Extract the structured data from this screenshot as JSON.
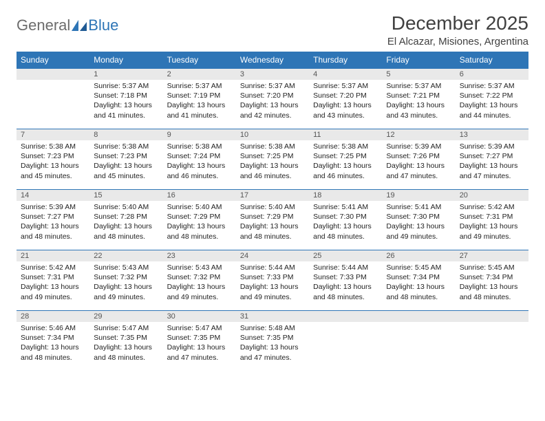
{
  "logo": {
    "text1": "General",
    "text2": "Blue"
  },
  "title": "December 2025",
  "location": "El Alcazar, Misiones, Argentina",
  "colors": {
    "header_bg": "#2e75b6",
    "header_fg": "#ffffff",
    "daynum_bg": "#e9e9e9",
    "row_divider": "#2e75b6",
    "text": "#333333"
  },
  "weekdays": [
    "Sunday",
    "Monday",
    "Tuesday",
    "Wednesday",
    "Thursday",
    "Friday",
    "Saturday"
  ],
  "start_offset": 1,
  "days": [
    {
      "n": 1,
      "sunrise": "5:37 AM",
      "sunset": "7:18 PM",
      "daylight": "13 hours and 41 minutes."
    },
    {
      "n": 2,
      "sunrise": "5:37 AM",
      "sunset": "7:19 PM",
      "daylight": "13 hours and 41 minutes."
    },
    {
      "n": 3,
      "sunrise": "5:37 AM",
      "sunset": "7:20 PM",
      "daylight": "13 hours and 42 minutes."
    },
    {
      "n": 4,
      "sunrise": "5:37 AM",
      "sunset": "7:20 PM",
      "daylight": "13 hours and 43 minutes."
    },
    {
      "n": 5,
      "sunrise": "5:37 AM",
      "sunset": "7:21 PM",
      "daylight": "13 hours and 43 minutes."
    },
    {
      "n": 6,
      "sunrise": "5:37 AM",
      "sunset": "7:22 PM",
      "daylight": "13 hours and 44 minutes."
    },
    {
      "n": 7,
      "sunrise": "5:38 AM",
      "sunset": "7:23 PM",
      "daylight": "13 hours and 45 minutes."
    },
    {
      "n": 8,
      "sunrise": "5:38 AM",
      "sunset": "7:23 PM",
      "daylight": "13 hours and 45 minutes."
    },
    {
      "n": 9,
      "sunrise": "5:38 AM",
      "sunset": "7:24 PM",
      "daylight": "13 hours and 46 minutes."
    },
    {
      "n": 10,
      "sunrise": "5:38 AM",
      "sunset": "7:25 PM",
      "daylight": "13 hours and 46 minutes."
    },
    {
      "n": 11,
      "sunrise": "5:38 AM",
      "sunset": "7:25 PM",
      "daylight": "13 hours and 46 minutes."
    },
    {
      "n": 12,
      "sunrise": "5:39 AM",
      "sunset": "7:26 PM",
      "daylight": "13 hours and 47 minutes."
    },
    {
      "n": 13,
      "sunrise": "5:39 AM",
      "sunset": "7:27 PM",
      "daylight": "13 hours and 47 minutes."
    },
    {
      "n": 14,
      "sunrise": "5:39 AM",
      "sunset": "7:27 PM",
      "daylight": "13 hours and 48 minutes."
    },
    {
      "n": 15,
      "sunrise": "5:40 AM",
      "sunset": "7:28 PM",
      "daylight": "13 hours and 48 minutes."
    },
    {
      "n": 16,
      "sunrise": "5:40 AM",
      "sunset": "7:29 PM",
      "daylight": "13 hours and 48 minutes."
    },
    {
      "n": 17,
      "sunrise": "5:40 AM",
      "sunset": "7:29 PM",
      "daylight": "13 hours and 48 minutes."
    },
    {
      "n": 18,
      "sunrise": "5:41 AM",
      "sunset": "7:30 PM",
      "daylight": "13 hours and 48 minutes."
    },
    {
      "n": 19,
      "sunrise": "5:41 AM",
      "sunset": "7:30 PM",
      "daylight": "13 hours and 49 minutes."
    },
    {
      "n": 20,
      "sunrise": "5:42 AM",
      "sunset": "7:31 PM",
      "daylight": "13 hours and 49 minutes."
    },
    {
      "n": 21,
      "sunrise": "5:42 AM",
      "sunset": "7:31 PM",
      "daylight": "13 hours and 49 minutes."
    },
    {
      "n": 22,
      "sunrise": "5:43 AM",
      "sunset": "7:32 PM",
      "daylight": "13 hours and 49 minutes."
    },
    {
      "n": 23,
      "sunrise": "5:43 AM",
      "sunset": "7:32 PM",
      "daylight": "13 hours and 49 minutes."
    },
    {
      "n": 24,
      "sunrise": "5:44 AM",
      "sunset": "7:33 PM",
      "daylight": "13 hours and 49 minutes."
    },
    {
      "n": 25,
      "sunrise": "5:44 AM",
      "sunset": "7:33 PM",
      "daylight": "13 hours and 48 minutes."
    },
    {
      "n": 26,
      "sunrise": "5:45 AM",
      "sunset": "7:34 PM",
      "daylight": "13 hours and 48 minutes."
    },
    {
      "n": 27,
      "sunrise": "5:45 AM",
      "sunset": "7:34 PM",
      "daylight": "13 hours and 48 minutes."
    },
    {
      "n": 28,
      "sunrise": "5:46 AM",
      "sunset": "7:34 PM",
      "daylight": "13 hours and 48 minutes."
    },
    {
      "n": 29,
      "sunrise": "5:47 AM",
      "sunset": "7:35 PM",
      "daylight": "13 hours and 48 minutes."
    },
    {
      "n": 30,
      "sunrise": "5:47 AM",
      "sunset": "7:35 PM",
      "daylight": "13 hours and 47 minutes."
    },
    {
      "n": 31,
      "sunrise": "5:48 AM",
      "sunset": "7:35 PM",
      "daylight": "13 hours and 47 minutes."
    }
  ],
  "labels": {
    "sunrise": "Sunrise:",
    "sunset": "Sunset:",
    "daylight": "Daylight:"
  }
}
